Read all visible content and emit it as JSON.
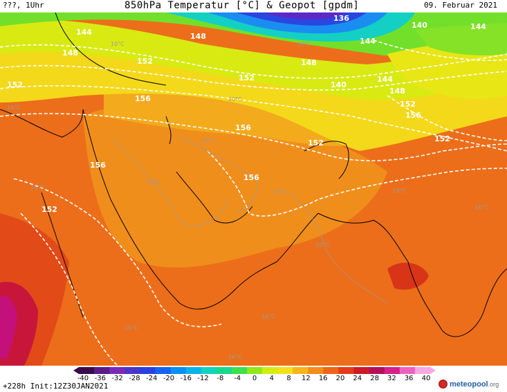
{
  "header": {
    "run_label": "???, 1Uhr",
    "title": "850hPa Temperatur [°C] & Geopot [gpdm]",
    "valid_date": "09. Februar 2021"
  },
  "footer": {
    "init_text": "+228h Init:12Z30JAN2021",
    "brand_name": "meteopool",
    "brand_tld": ".org"
  },
  "legend": {
    "ticks": [
      "-40",
      "-36",
      "-32",
      "-28",
      "-24",
      "-20",
      "-16",
      "-12",
      "-8",
      "-4",
      "0",
      "4",
      "8",
      "12",
      "16",
      "20",
      "24",
      "28",
      "32",
      "36",
      "40"
    ],
    "colors": [
      "#3a0a4a",
      "#5c1a8a",
      "#7a2ab8",
      "#4a36c8",
      "#2a40e0",
      "#1464f0",
      "#0a90f0",
      "#0ab4e8",
      "#10d4c0",
      "#18d890",
      "#3ce050",
      "#8ee81c",
      "#d2ee10",
      "#f4e01a",
      "#f8b41c",
      "#f48c1a",
      "#ee6418",
      "#e43c16",
      "#cc1a28",
      "#b4105a",
      "#d8208c",
      "#f060c0",
      "#f8a8e4"
    ]
  },
  "map_labels": {
    "geopot": [
      "136",
      "140",
      "144",
      "144",
      "148",
      "148",
      "152",
      "148",
      "152",
      "152",
      "156",
      "152",
      "156",
      "156",
      "156",
      "152",
      "144",
      "148",
      "152",
      "156",
      "152",
      "140",
      "144"
    ],
    "temps": [
      "10°C",
      "10°C",
      "16°C",
      "16°C",
      "10°C",
      "10°C",
      "16°C",
      "16°C",
      "16°C",
      "16°C",
      "16°C",
      "16°C",
      "10°C",
      "10°C"
    ]
  },
  "colors": {
    "cold_blue": "#1846e0",
    "mid_yellow": "#f0e418",
    "warm_orange": "#ef7a18",
    "hot_red": "#e8401a",
    "magenta": "#c0105a"
  }
}
